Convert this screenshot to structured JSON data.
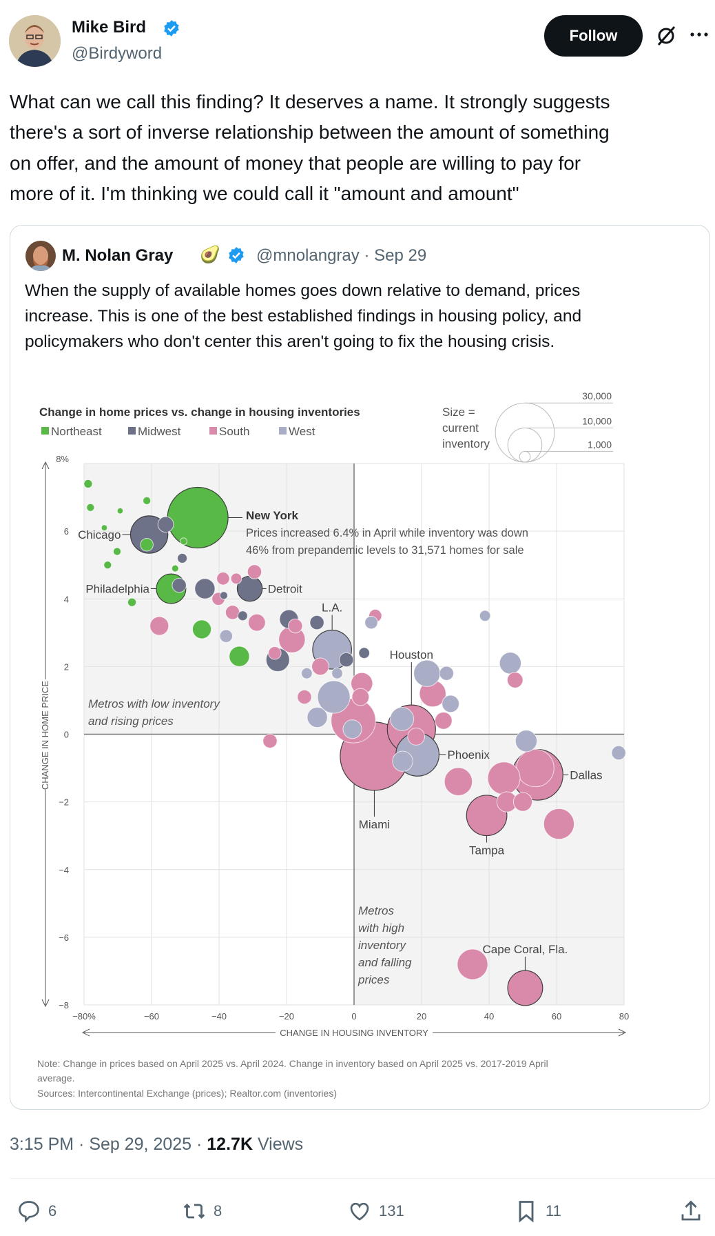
{
  "author": {
    "name": "Mike Bird",
    "handle": "@Birdyword",
    "verified": true
  },
  "header": {
    "follow_label": "Follow",
    "grok_icon": "grok-icon",
    "more_icon": "more-icon"
  },
  "tweet": {
    "lines": [
      "What can we call this finding? It deserves a name. It strongly suggests",
      "there's a sort of inverse relationship between the amount of something",
      "on offer, and the amount of money that people are willing to pay for",
      "more of it. I'm thinking we could call it \"amount and amount\""
    ]
  },
  "quote": {
    "name": "M. Nolan Gray",
    "emoji": "🥑",
    "handle": "@mnolangray",
    "date": "· Sep 29",
    "lines": [
      "When the supply of available homes goes down relative to demand, prices",
      "increase. This is one of the best established findings in housing policy, and",
      "policymakers who don't center this aren't going to fix the housing crisis."
    ]
  },
  "chart_data": {
    "type": "scatter",
    "title": "Change in home prices vs. change in housing inventories",
    "legend": [
      {
        "key": "NE",
        "label": "Northeast",
        "color": "#58b947"
      },
      {
        "key": "MW",
        "label": "Midwest",
        "color": "#6e7289"
      },
      {
        "key": "S",
        "label": "South",
        "color": "#d98aab"
      },
      {
        "key": "W",
        "label": "West",
        "color": "#a9adc5"
      }
    ],
    "size_legend": {
      "label_lines": [
        "Size =",
        "current",
        "inventory"
      ],
      "values": [
        30000,
        10000,
        1000
      ],
      "value_labels": [
        "30,000",
        "10,000",
        "1,000"
      ]
    },
    "xlabel": "CHANGE IN HOUSING INVENTORY",
    "ylabel": "CHANGE IN HOME PRICE",
    "xlim": [
      -80,
      80
    ],
    "ylim": [
      -8,
      8
    ],
    "xticks": [
      -80,
      -60,
      -40,
      -20,
      0,
      20,
      40,
      60,
      80
    ],
    "xtick_labels": [
      "−80%",
      "−60",
      "−40",
      "−20",
      "0",
      "20",
      "40",
      "60",
      "80"
    ],
    "yticks": [
      8,
      6,
      4,
      2,
      0,
      -2,
      -4,
      -6,
      -8
    ],
    "ytick_labels": [
      "8%",
      "6",
      "4",
      "2",
      "0",
      "−2",
      "−4",
      "−6",
      "−8"
    ],
    "points": [
      [
        -46.3,
        6.4,
        31571,
        "NE",
        "New York"
      ],
      [
        6,
        -0.65,
        40000,
        "S",
        "Miami"
      ],
      [
        17,
        0.15,
        20000,
        "S",
        "Houston"
      ],
      [
        54.4,
        -1.2,
        22000,
        "S",
        "Dallas"
      ],
      [
        18.8,
        -0.6,
        16000,
        "W",
        "Phoenix"
      ],
      [
        39.3,
        -2.4,
        14000,
        "S",
        "Tampa"
      ],
      [
        -6.5,
        2.5,
        13000,
        "W",
        "L.A."
      ],
      [
        -60.7,
        5.9,
        12000,
        "MW",
        "Chicago"
      ],
      [
        50.7,
        -7.5,
        10500,
        "S",
        "Cape Coral, Fla."
      ],
      [
        -54.2,
        4.3,
        7500,
        "NE",
        "Philadelphia"
      ],
      [
        -30.9,
        4.3,
        5400,
        "MW",
        "Detroit"
      ],
      [
        -0.2,
        0.4,
        17000,
        "S"
      ],
      [
        53.7,
        -1.0,
        12000,
        "S"
      ],
      [
        44.4,
        -1.3,
        9000,
        "S"
      ],
      [
        -6,
        1.1,
        9000,
        "W"
      ],
      [
        60.7,
        -2.65,
        8000,
        "S"
      ],
      [
        35.1,
        -6.8,
        8000,
        "S"
      ],
      [
        30.9,
        -1.4,
        6700,
        "S"
      ],
      [
        23.3,
        1.2,
        6000,
        "S"
      ],
      [
        21.6,
        1.8,
        6000,
        "W"
      ],
      [
        -18.4,
        2.8,
        6000,
        "S"
      ],
      [
        -22.6,
        2.2,
        4700,
        "MW"
      ],
      [
        14.2,
        0.45,
        4700,
        "W"
      ],
      [
        2.3,
        1.5,
        4000,
        "S"
      ],
      [
        46.3,
        2.1,
        4000,
        "W"
      ],
      [
        51,
        -0.2,
        4000,
        "W"
      ],
      [
        -44.2,
        4.3,
        3500,
        "MW"
      ],
      [
        -34,
        2.3,
        3500,
        "NE"
      ],
      [
        -10.9,
        0.5,
        3500,
        "W"
      ],
      [
        14.4,
        -0.8,
        3500,
        "W"
      ],
      [
        45.3,
        -2.0,
        3500,
        "S"
      ],
      [
        -57.7,
        3.2,
        3000,
        "S"
      ],
      [
        -45.1,
        3.1,
        3000,
        "NE"
      ],
      [
        -19.3,
        3.4,
        3000,
        "MW"
      ],
      [
        -0.5,
        0.15,
        3000,
        "W"
      ],
      [
        50,
        -2.0,
        3000,
        "S"
      ],
      [
        -28.8,
        3.3,
        2500,
        "S"
      ],
      [
        -10,
        2.0,
        2500,
        "S"
      ],
      [
        1.9,
        1.1,
        2500,
        "S"
      ],
      [
        26.5,
        0.4,
        2500,
        "S"
      ],
      [
        28.6,
        0.9,
        2500,
        "W"
      ],
      [
        18.4,
        -0.07,
        2500,
        "S"
      ],
      [
        -55.8,
        6.2,
        2100,
        "MW"
      ],
      [
        47.7,
        1.6,
        2100,
        "S"
      ],
      [
        -51.8,
        4.4,
        1700,
        "MW"
      ],
      [
        -11,
        3.3,
        1700,
        "MW"
      ],
      [
        -2.3,
        2.2,
        1700,
        "MW"
      ],
      [
        -29.5,
        4.8,
        1700,
        "S"
      ],
      [
        -36,
        3.6,
        1700,
        "S"
      ],
      [
        -17.4,
        3.2,
        1700,
        "S"
      ],
      [
        -14.7,
        1.1,
        1700,
        "S"
      ],
      [
        -24.9,
        -0.2,
        1700,
        "S"
      ],
      [
        27.4,
        1.8,
        1700,
        "W"
      ],
      [
        78.4,
        -0.55,
        1700,
        "W"
      ],
      [
        -61.4,
        5.6,
        1400,
        "NE"
      ],
      [
        -38.8,
        4.6,
        1400,
        "S"
      ],
      [
        -40.2,
        4.0,
        1400,
        "S"
      ],
      [
        -23.5,
        2.4,
        1400,
        "S"
      ],
      [
        6.3,
        3.5,
        1400,
        "S"
      ],
      [
        -37.9,
        2.9,
        1400,
        "W"
      ],
      [
        5.1,
        3.3,
        1400,
        "W"
      ],
      [
        3,
        2.4,
        1000,
        "MW"
      ],
      [
        -34.9,
        4.6,
        1000,
        "S"
      ],
      [
        -14,
        1.8,
        1000,
        "W"
      ],
      [
        -5,
        1.8,
        1000,
        "W"
      ],
      [
        38.8,
        3.5,
        1000,
        "W"
      ],
      [
        -50.9,
        5.2,
        800,
        "MW"
      ],
      [
        -33,
        3.5,
        800,
        "MW"
      ],
      [
        -65.8,
        3.9,
        600,
        "NE"
      ],
      [
        -78.8,
        7.4,
        600,
        "NE"
      ],
      [
        -78.1,
        6.7,
        500,
        "NE"
      ],
      [
        -61.4,
        6.9,
        500,
        "NE"
      ],
      [
        -70.2,
        5.4,
        500,
        "NE"
      ],
      [
        -73,
        5.0,
        500,
        "NE"
      ],
      [
        -38.6,
        4.1,
        500,
        "MW"
      ],
      [
        -50.5,
        5.7,
        400,
        "NE"
      ],
      [
        -53,
        4.9,
        400,
        "NE"
      ],
      [
        -69.3,
        6.6,
        300,
        "NE"
      ],
      [
        -74,
        6.1,
        300,
        "NE"
      ]
    ],
    "annotations": {
      "ny_title": "New York",
      "ny_lines": [
        "Prices increased 6.4% in April while inventory was down",
        "46% from prepandemic levels to 31,571 homes for sale"
      ],
      "upper_left": [
        "Metros with low inventory",
        "and rising prices"
      ],
      "lower_right": [
        "Metros",
        "with high",
        "inventory",
        "and falling",
        "prices"
      ]
    },
    "notes": [
      "Note: Change in prices based on April 2025 vs. April 2024. Change in inventory based on April 2025 vs. 2017-2019 April",
      "average.",
      "Sources: Intercontinental Exchange (prices); Realtor.com (inventories)"
    ],
    "grid": true
  },
  "meta": {
    "time": "3:15 PM · Sep 29, 2025 · ",
    "views_count": "12.7K",
    "views_label": " Views"
  },
  "actions": {
    "replies": "6",
    "reposts": "8",
    "likes": "131",
    "bookmarks": "11"
  }
}
